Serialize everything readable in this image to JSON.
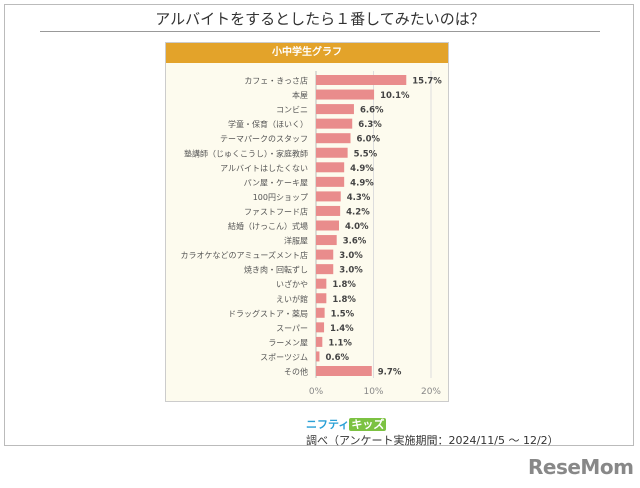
{
  "chart_data": {
    "type": "bar",
    "orientation": "horizontal",
    "title": "アルバイトをするとしたら１番してみたいのは？",
    "subtitle": "小中学生グラフ",
    "categories": [
      "カフェ・きっさ店",
      "本屋",
      "コンビニ",
      "学童・保育（ほいく）",
      "テーマパークのスタッフ",
      "塾講師（じゅくこうし）・家庭教師",
      "アルバイトはしたくない",
      "パン屋・ケーキ屋",
      "100円ショップ",
      "ファストフード店",
      "結婚（けっこん）式場",
      "洋服屋",
      "カラオケなどのアミューズメント店",
      "焼き肉・回転ずし",
      "いざかや",
      "えいが館",
      "ドラッグストア・薬局",
      "スーパー",
      "ラーメン屋",
      "スポーツジム",
      "その他"
    ],
    "values": [
      15.7,
      10.1,
      6.6,
      6.3,
      6.0,
      5.5,
      4.9,
      4.9,
      4.3,
      4.2,
      4.0,
      3.6,
      3.0,
      3.0,
      1.8,
      1.8,
      1.5,
      1.4,
      1.1,
      0.6,
      9.7
    ],
    "value_labels": [
      "15.7%",
      "10.1%",
      "6.6%",
      "6.3%",
      "6.0%",
      "5.5%",
      "4.9%",
      "4.9%",
      "4.3%",
      "4.2%",
      "4.0%",
      "3.6%",
      "3.0%",
      "3.0%",
      "1.8%",
      "1.8%",
      "1.5%",
      "1.4%",
      "1.1%",
      "0.6%",
      "9.7%"
    ],
    "xticks": [
      0,
      10,
      20
    ],
    "xtick_labels": [
      "0%",
      "10%",
      "20%"
    ],
    "xlim": [
      0,
      22
    ],
    "grid": true,
    "bar_color": "#e98c8c"
  },
  "source": {
    "brand1": "ニフティ",
    "brand2": "キッズ",
    "text": "調べ（アンケート実施期間：2024/11/5 ～ 12/2）"
  },
  "logo": "ReseMom"
}
